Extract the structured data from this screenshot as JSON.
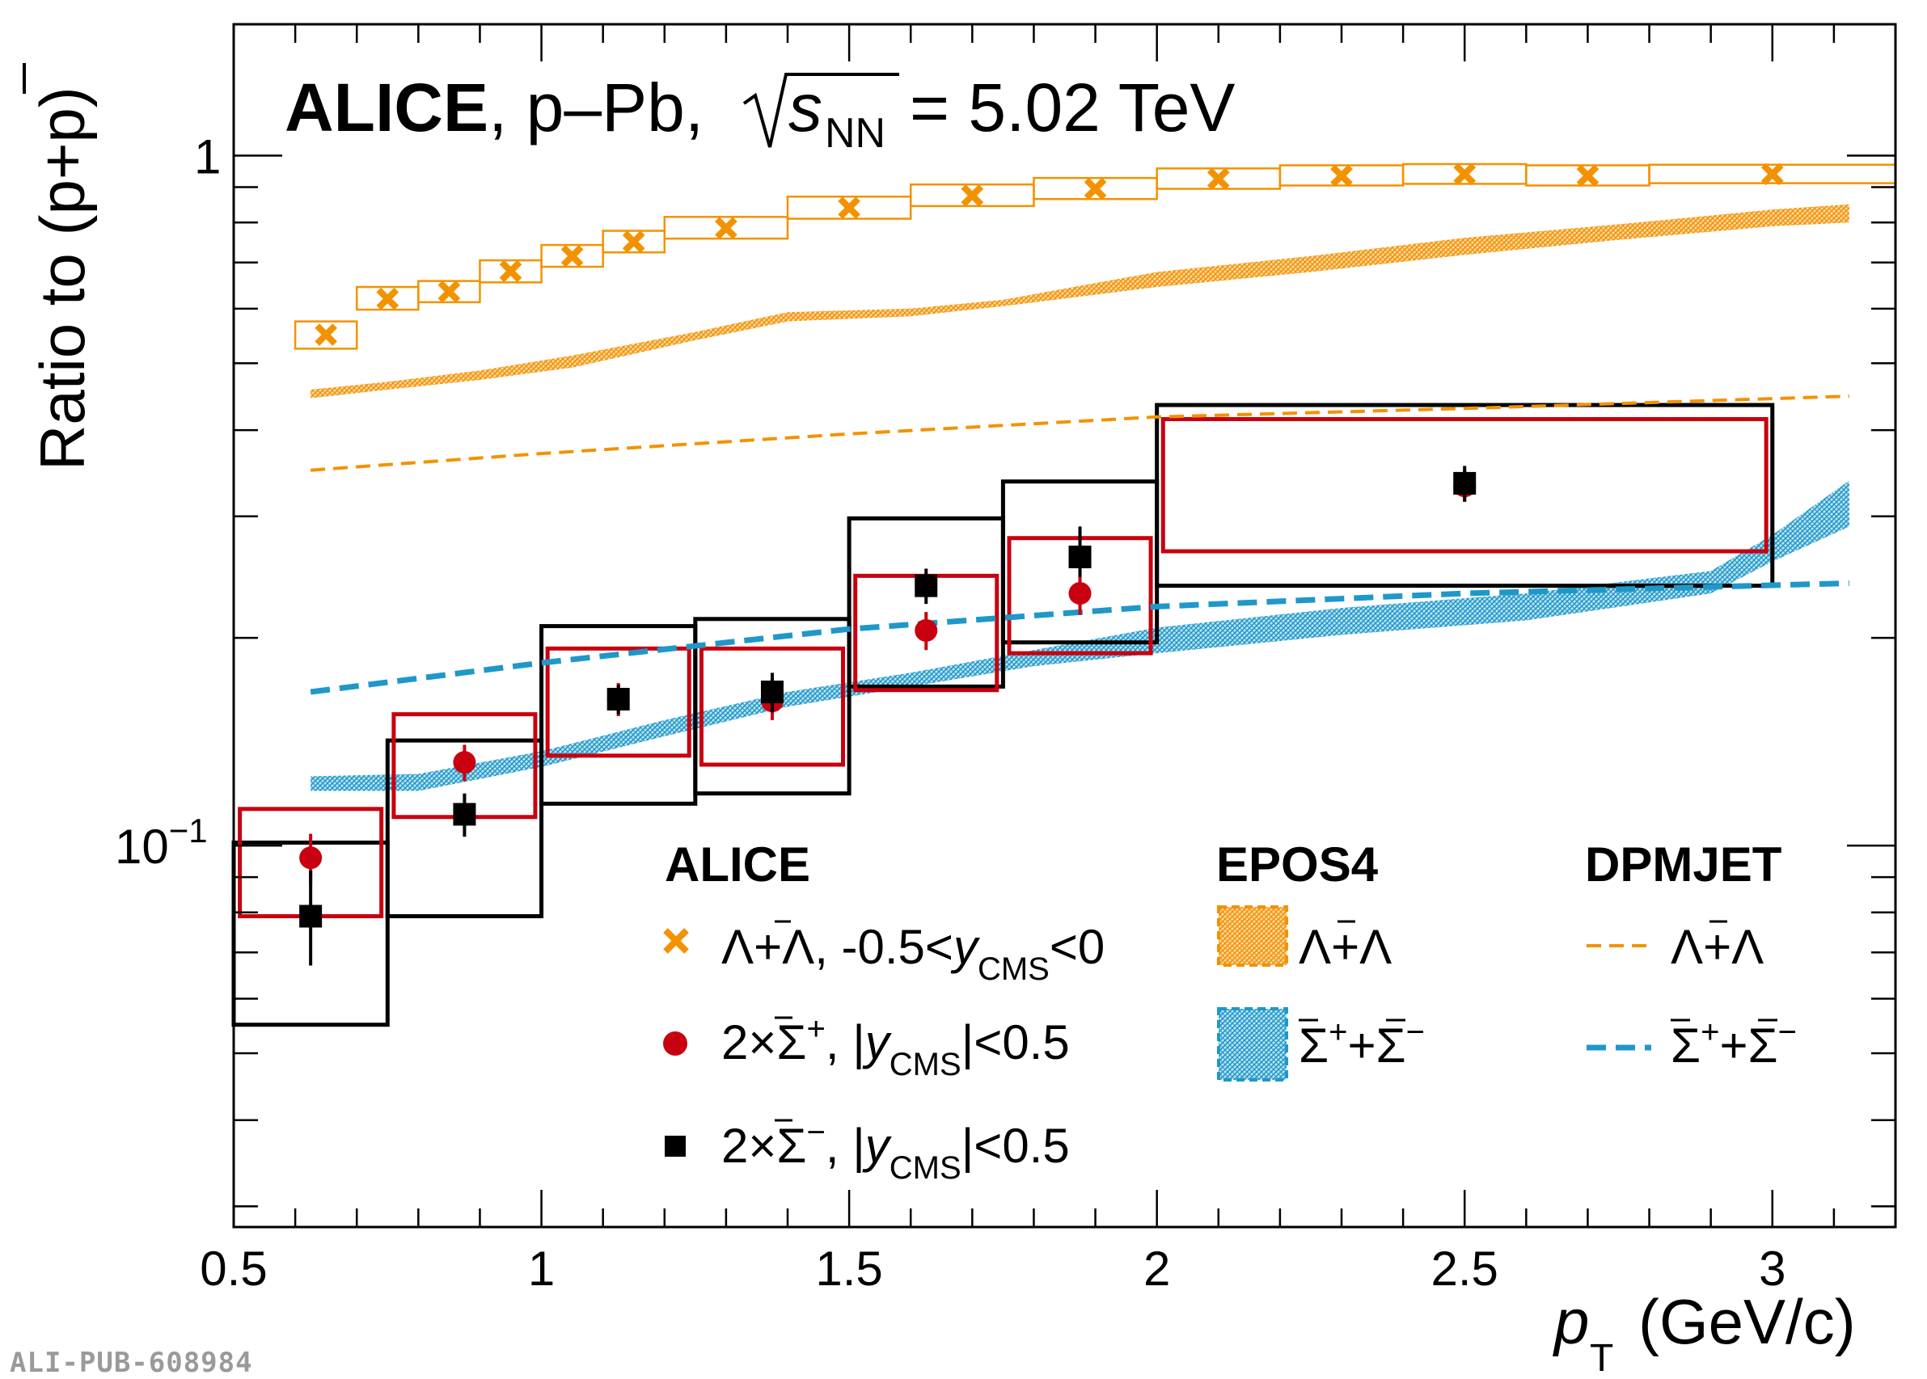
{
  "chart_data": {
    "type": "scatter",
    "title_bold": "ALICE",
    "title_rest": ", p–Pb, ",
    "energy_sym": "s",
    "energy_sub": "NN",
    "energy_val": "= 5.02 TeV",
    "ylabel": "Ratio to (p+p)",
    "xlabel_sym": "p",
    "xlabel_sub": "T",
    "xlabel_unit": "(GeV/c)",
    "xlim": [
      0.5,
      3.2
    ],
    "ylim": [
      0.028,
      1.55
    ],
    "yscale": "log",
    "xticks": [
      "0.5",
      "1",
      "1.5",
      "2",
      "2.5",
      "3"
    ],
    "yticks": [
      {
        "value": 1,
        "label": "1"
      },
      {
        "value": 0.1,
        "label": "10",
        "exp": "−1"
      }
    ],
    "series": [
      {
        "name": "Λ+Λ, -0.5<y<0",
        "marker": "cross",
        "color": "#f39200",
        "x": [
          0.65,
          0.75,
          0.85,
          0.95,
          1.05,
          1.15,
          1.3,
          1.5,
          1.7,
          1.9,
          2.1,
          2.3,
          2.5,
          2.7,
          3.0
        ],
        "xlow": [
          0.6,
          0.7,
          0.8,
          0.9,
          1.0,
          1.1,
          1.2,
          1.4,
          1.6,
          1.8,
          2.0,
          2.2,
          2.4,
          2.6,
          2.8
        ],
        "xhigh": [
          0.7,
          0.8,
          0.9,
          1.0,
          1.1,
          1.2,
          1.4,
          1.6,
          1.8,
          2.0,
          2.2,
          2.4,
          2.6,
          2.8,
          3.2
        ],
        "y": [
          0.55,
          0.62,
          0.635,
          0.68,
          0.715,
          0.75,
          0.785,
          0.84,
          0.875,
          0.895,
          0.925,
          0.935,
          0.94,
          0.935,
          0.94
        ],
        "sys_low": [
          0.525,
          0.598,
          0.613,
          0.655,
          0.69,
          0.724,
          0.758,
          0.81,
          0.845,
          0.865,
          0.895,
          0.905,
          0.91,
          0.905,
          0.912
        ],
        "sys_high": [
          0.575,
          0.645,
          0.658,
          0.705,
          0.742,
          0.778,
          0.815,
          0.872,
          0.908,
          0.928,
          0.958,
          0.968,
          0.972,
          0.968,
          0.97
        ]
      },
      {
        "name": "2×Σ+, |y|<0.5",
        "marker": "circle",
        "color": "#c8000f",
        "x": [
          0.625,
          0.875,
          1.125,
          1.375,
          1.625,
          1.875,
          2.5
        ],
        "xlow": [
          0.51,
          0.76,
          1.01,
          1.26,
          1.51,
          1.76,
          2.01
        ],
        "xhigh": [
          0.74,
          0.99,
          1.24,
          1.49,
          1.74,
          1.99,
          2.99
        ],
        "y": [
          0.096,
          0.132,
          0.163,
          0.162,
          0.205,
          0.232,
          0.332
        ],
        "stat_low": [
          0.088,
          0.124,
          0.154,
          0.152,
          0.192,
          0.216,
          0.315
        ],
        "stat_high": [
          0.104,
          0.14,
          0.172,
          0.172,
          0.218,
          0.248,
          0.35
        ],
        "sys_low": [
          0.079,
          0.11,
          0.135,
          0.131,
          0.168,
          0.19,
          0.267
        ],
        "sys_high": [
          0.113,
          0.155,
          0.193,
          0.193,
          0.246,
          0.279,
          0.415
        ]
      },
      {
        "name": "2×Σ−, |y|<0.5",
        "marker": "square",
        "color": "#000000",
        "x": [
          0.625,
          0.875,
          1.125,
          1.375,
          1.625,
          1.875,
          2.5
        ],
        "xlow": [
          0.5,
          0.75,
          1.0,
          1.25,
          1.5,
          1.75,
          2.0
        ],
        "xhigh": [
          0.75,
          1.0,
          1.25,
          1.5,
          1.75,
          2.0,
          3.0
        ],
        "y": [
          0.079,
          0.111,
          0.163,
          0.167,
          0.238,
          0.262,
          0.335
        ],
        "stat_low": [
          0.067,
          0.103,
          0.155,
          0.156,
          0.224,
          0.245,
          0.315
        ],
        "stat_high": [
          0.092,
          0.119,
          0.171,
          0.178,
          0.252,
          0.29,
          0.355
        ],
        "sys_low": [
          0.055,
          0.079,
          0.115,
          0.119,
          0.17,
          0.197,
          0.238
        ],
        "sys_high": [
          0.101,
          0.142,
          0.208,
          0.213,
          0.298,
          0.337,
          0.435
        ]
      },
      {
        "name": "EPOS4 Λ+Λ band",
        "type": "band",
        "color": "#f39200",
        "x": [
          0.625,
          0.75,
          0.9,
          1.05,
          1.25,
          1.4,
          1.6,
          1.75,
          2.0,
          2.25,
          2.5,
          2.75,
          3.0,
          3.125
        ],
        "low": [
          0.445,
          0.458,
          0.473,
          0.493,
          0.54,
          0.575,
          0.585,
          0.605,
          0.645,
          0.678,
          0.718,
          0.755,
          0.79,
          0.8
        ],
        "high": [
          0.458,
          0.47,
          0.488,
          0.513,
          0.555,
          0.593,
          0.6,
          0.618,
          0.678,
          0.715,
          0.76,
          0.795,
          0.835,
          0.85
        ]
      },
      {
        "name": "EPOS4 Σ band",
        "type": "band",
        "color": "#1f98c9",
        "x": [
          0.625,
          0.8,
          1.0,
          1.2,
          1.4,
          1.6,
          1.8,
          2.0,
          2.3,
          2.6,
          2.9,
          3.0,
          3.125
        ],
        "low": [
          0.12,
          0.12,
          0.13,
          0.144,
          0.159,
          0.17,
          0.182,
          0.19,
          0.202,
          0.212,
          0.232,
          0.258,
          0.29
        ],
        "high": [
          0.126,
          0.127,
          0.137,
          0.152,
          0.167,
          0.178,
          0.192,
          0.207,
          0.221,
          0.232,
          0.25,
          0.282,
          0.338
        ]
      },
      {
        "name": "DPMJET Λ+Λ",
        "type": "dashed-line",
        "color": "#f39200",
        "x": [
          0.625,
          1.0,
          1.5,
          2.0,
          2.5,
          3.125
        ],
        "y": [
          0.35,
          0.37,
          0.395,
          0.418,
          0.43,
          0.448
        ]
      },
      {
        "name": "DPMJET Σ",
        "type": "dashed-line",
        "color": "#1f98c9",
        "x": [
          0.625,
          1.0,
          1.5,
          2.0,
          2.5,
          3.125
        ],
        "y": [
          0.167,
          0.184,
          0.206,
          0.222,
          0.232,
          0.24
        ]
      }
    ],
    "legend": {
      "alice_title": "ALICE",
      "epos_title": "EPOS4",
      "dpmjet_title": "DPMJET",
      "lambda_pre": "Λ+Λ, -0.5<",
      "lambda_y": "y",
      "lambda_sub": "CMS",
      "lambda_post": "<0",
      "sigp_pre": "2×Σ",
      "sigp_sup": "+",
      "sigp_mid": ", |",
      "sig_y": "y",
      "sig_sub": "CMS",
      "sig_post": "|<0.5",
      "sigm_pre": "2×Σ",
      "sigm_sup": "−",
      "model_lambda": "Λ+Λ",
      "model_sigma_a": "Σ",
      "model_sigma_a_sup": "+",
      "model_sigma_plus": "+",
      "model_sigma_b": "Σ",
      "model_sigma_b_sup": "−"
    },
    "watermark": "ALI-PUB-608984"
  }
}
